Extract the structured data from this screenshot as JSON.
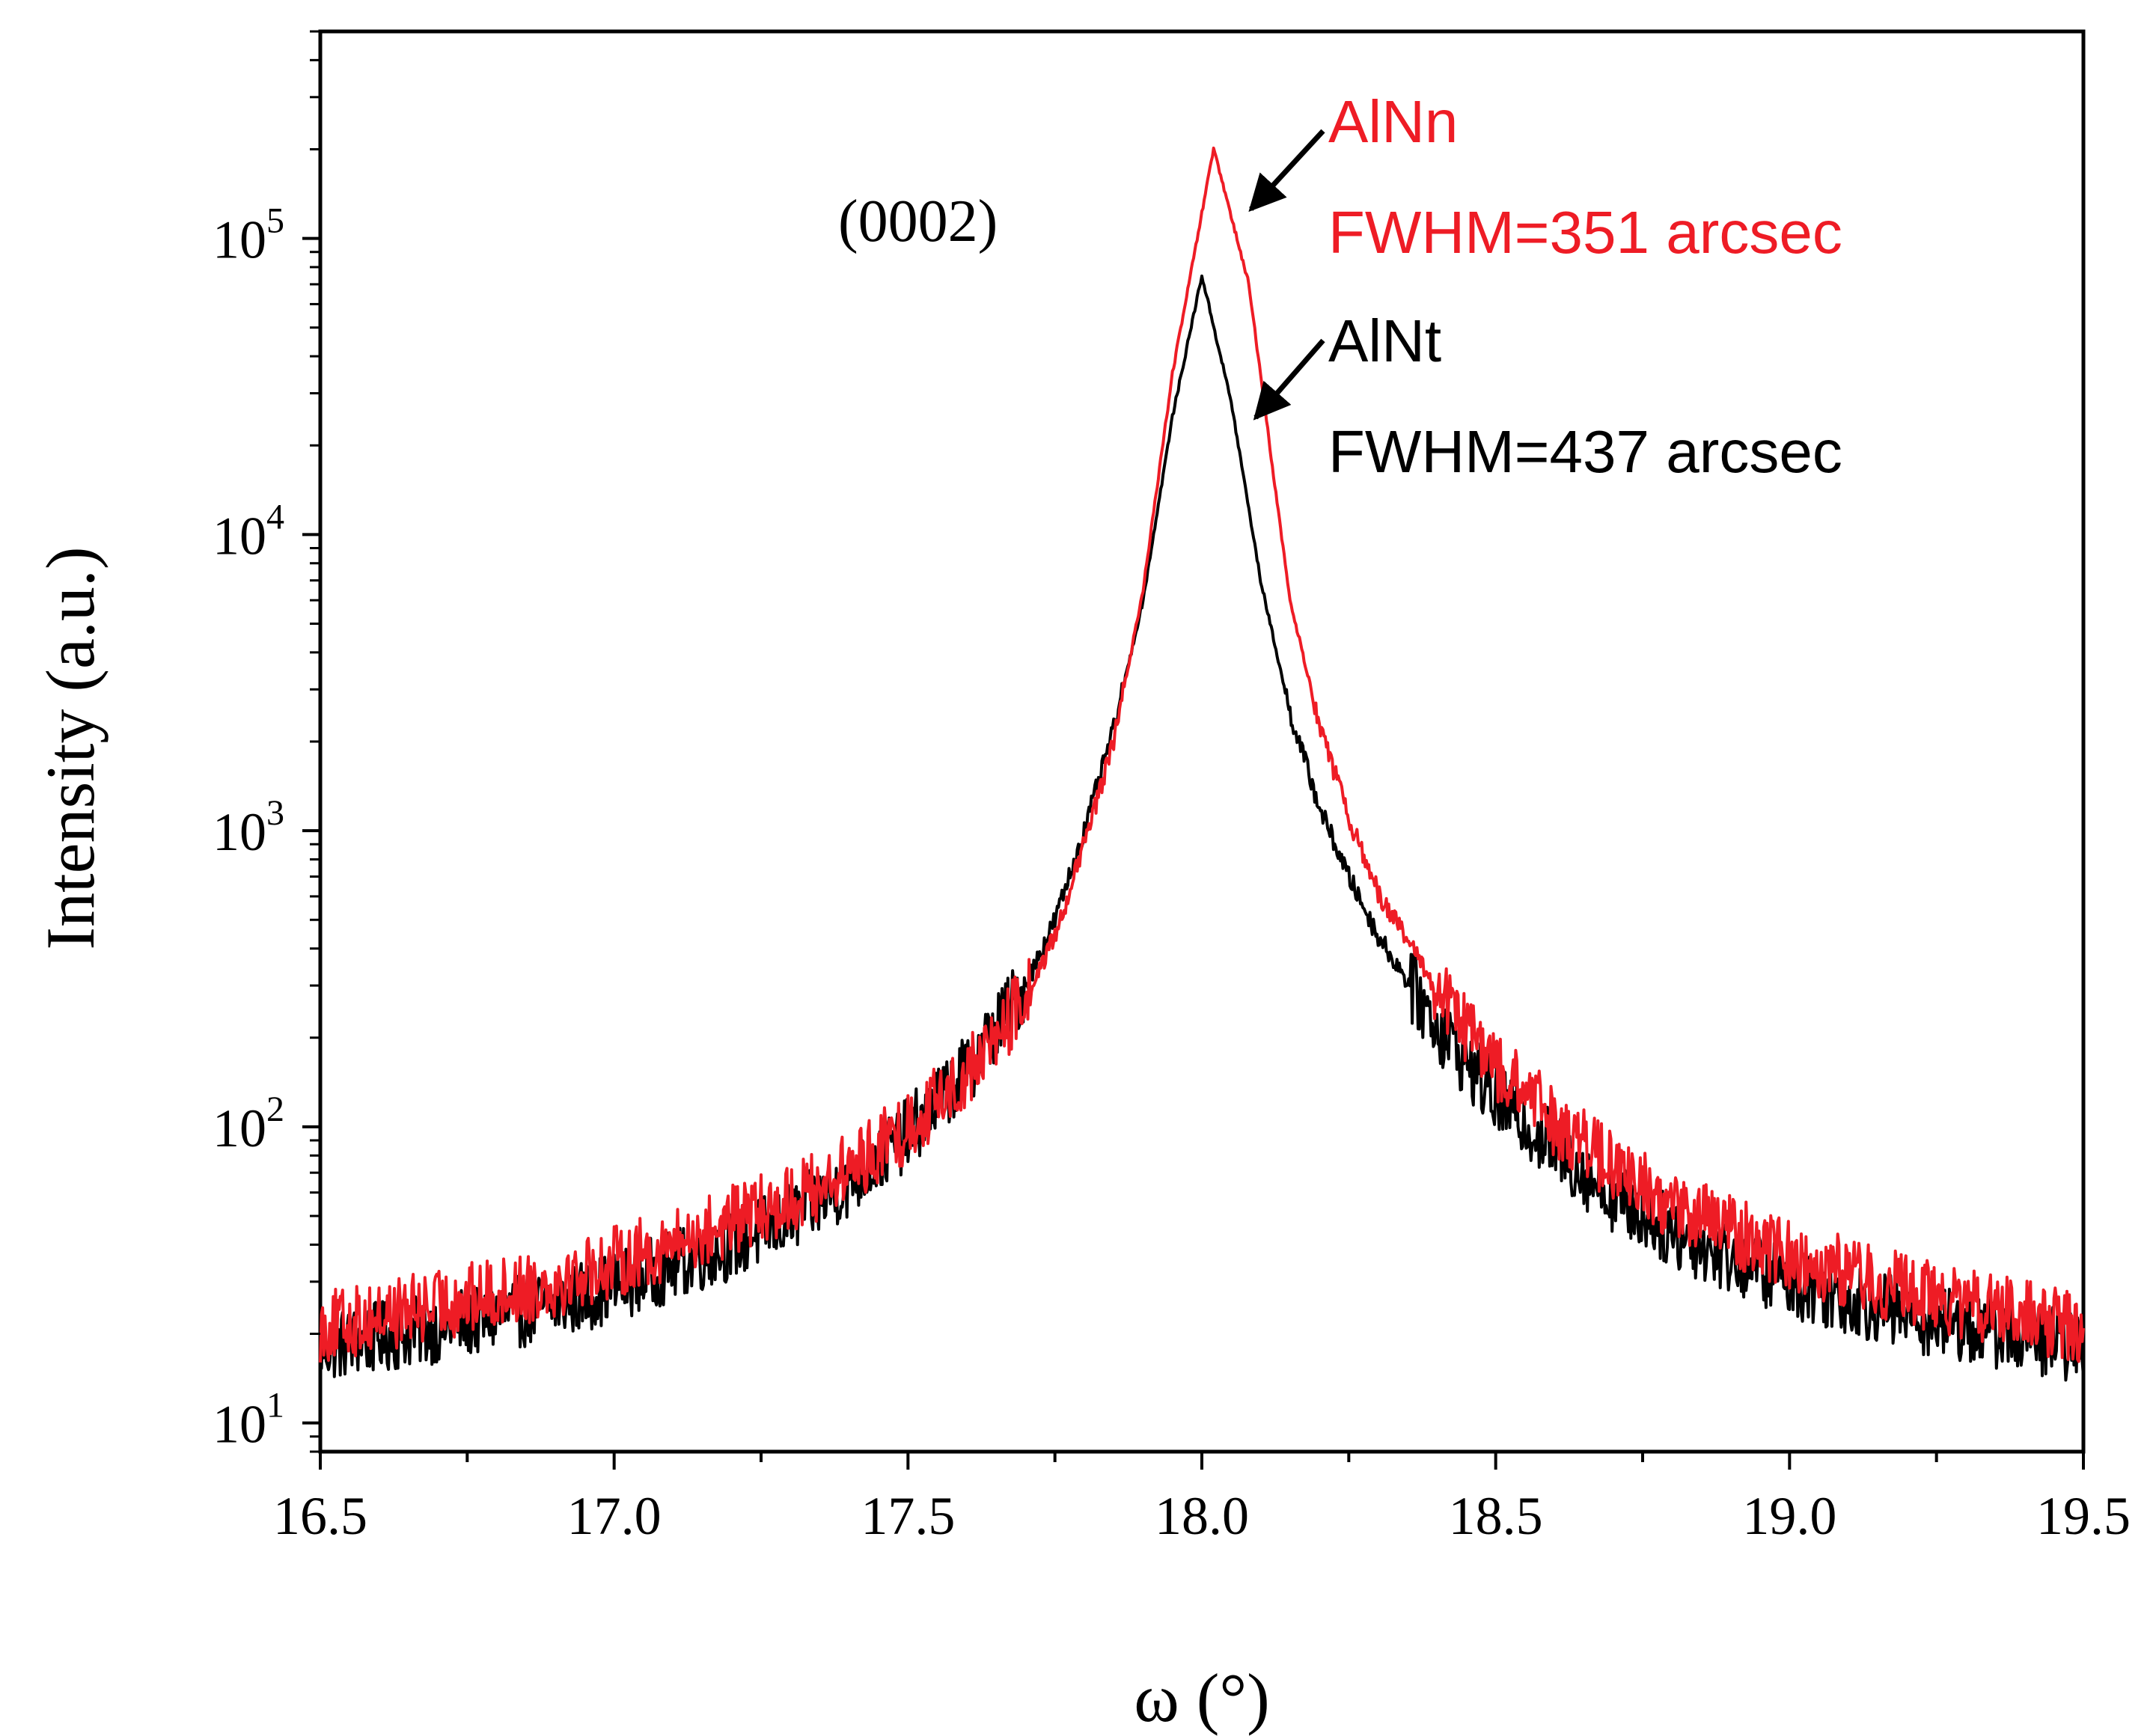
{
  "chart_data": {
    "type": "line",
    "title": "",
    "xlabel": "ω (°)",
    "ylabel": "Intensity (a.u.)",
    "xlim": [
      16.5,
      19.5
    ],
    "ylim": [
      8,
      500000
    ],
    "yscale": "log",
    "grid": false,
    "x_ticks": [
      "16.5",
      "17.0",
      "17.5",
      "18.0",
      "18.5",
      "19.0",
      "19.5"
    ],
    "y_ticks": [
      {
        "base": "10",
        "exp": "1"
      },
      {
        "base": "10",
        "exp": "2"
      },
      {
        "base": "10",
        "exp": "3"
      },
      {
        "base": "10",
        "exp": "4"
      },
      {
        "base": "10",
        "exp": "5"
      }
    ],
    "peak_label": "(0002)",
    "series": [
      {
        "name": "AlNt",
        "color": "#000000",
        "peak_x": 18.0,
        "peak_y": 75000,
        "points": [
          [
            16.5,
            18
          ],
          [
            16.7,
            21
          ],
          [
            16.9,
            25
          ],
          [
            17.0,
            29
          ],
          [
            17.1,
            34
          ],
          [
            17.2,
            40
          ],
          [
            17.3,
            49
          ],
          [
            17.4,
            65
          ],
          [
            17.5,
            95
          ],
          [
            17.6,
            155
          ],
          [
            17.7,
            300
          ],
          [
            17.75,
            500
          ],
          [
            17.8,
            1000
          ],
          [
            17.85,
            2200
          ],
          [
            17.9,
            6000
          ],
          [
            17.95,
            25000
          ],
          [
            18.0,
            75000
          ],
          [
            18.05,
            28000
          ],
          [
            18.1,
            7000
          ],
          [
            18.15,
            2500
          ],
          [
            18.2,
            1200
          ],
          [
            18.25,
            700
          ],
          [
            18.3,
            440
          ],
          [
            18.4,
            220
          ],
          [
            18.5,
            125
          ],
          [
            18.6,
            85
          ],
          [
            18.7,
            58
          ],
          [
            18.8,
            44
          ],
          [
            18.9,
            36
          ],
          [
            19.0,
            30
          ],
          [
            19.2,
            23
          ],
          [
            19.3,
            21
          ],
          [
            19.5,
            18
          ]
        ]
      },
      {
        "name": "AlNn",
        "color": "#ee1c25",
        "peak_x": 18.02,
        "peak_y": 200000,
        "points": [
          [
            16.5,
            21
          ],
          [
            16.7,
            25
          ],
          [
            16.9,
            30
          ],
          [
            17.0,
            35
          ],
          [
            17.1,
            40
          ],
          [
            17.2,
            48
          ],
          [
            17.3,
            57
          ],
          [
            17.4,
            72
          ],
          [
            17.5,
            100
          ],
          [
            17.6,
            150
          ],
          [
            17.7,
            270
          ],
          [
            17.75,
            440
          ],
          [
            17.8,
            900
          ],
          [
            17.85,
            2000
          ],
          [
            17.9,
            6500
          ],
          [
            17.95,
            35000
          ],
          [
            18.02,
            200000
          ],
          [
            18.08,
            70000
          ],
          [
            18.12,
            17000
          ],
          [
            18.15,
            6000
          ],
          [
            18.2,
            2300
          ],
          [
            18.25,
            1100
          ],
          [
            18.3,
            620
          ],
          [
            18.4,
            290
          ],
          [
            18.5,
            160
          ],
          [
            18.6,
            105
          ],
          [
            18.7,
            73
          ],
          [
            18.8,
            54
          ],
          [
            18.9,
            45
          ],
          [
            19.0,
            37
          ],
          [
            19.2,
            28
          ],
          [
            19.3,
            25
          ],
          [
            19.5,
            21
          ]
        ]
      }
    ],
    "annotations": [
      {
        "series": "AlNn",
        "lines": [
          "AlNn",
          "FWHM=351 arcsec"
        ],
        "color": "#ee1c25"
      },
      {
        "series": "AlNt",
        "lines": [
          "AlNt",
          "FWHM=437 arcsec"
        ],
        "color": "#000000"
      }
    ]
  }
}
